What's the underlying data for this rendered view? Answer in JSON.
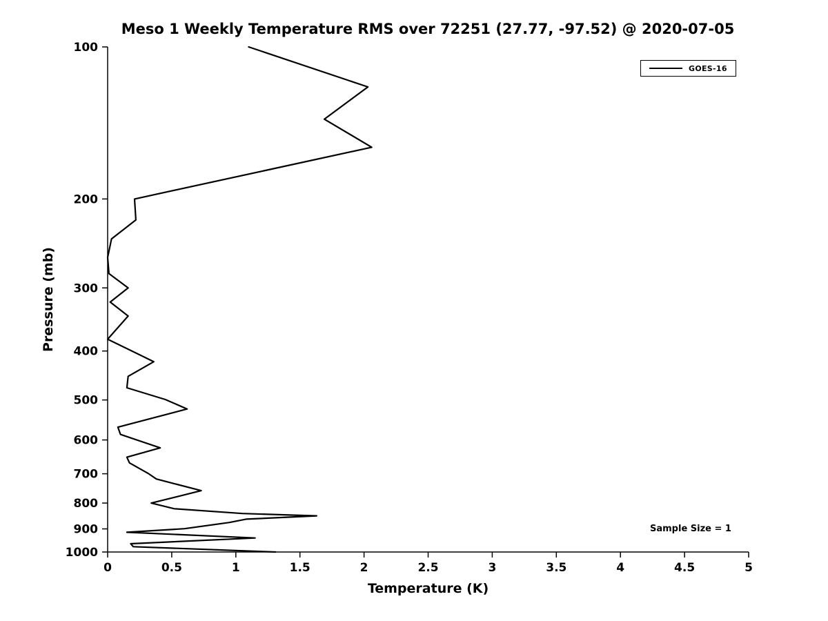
{
  "chart_data": {
    "type": "line",
    "title": "Meso 1 Weekly Temperature RMS over 72251 (27.77, -97.52) @ 2020-07-05",
    "xlabel": "Temperature (K)",
    "ylabel": "Pressure (mb)",
    "xlim": [
      0,
      5
    ],
    "ylim": [
      100,
      1000
    ],
    "y_scale": "log",
    "y_inverted": true,
    "grid": false,
    "x_ticks": [
      0,
      0.5,
      1,
      1.5,
      2,
      2.5,
      3,
      3.5,
      4,
      4.5,
      5
    ],
    "y_ticks": [
      100,
      200,
      300,
      400,
      500,
      600,
      700,
      800,
      900,
      1000
    ],
    "line_color": "#000000",
    "legend_position": "top-right",
    "legend": [
      {
        "label": "GOES-16",
        "color": "#000000"
      }
    ],
    "annotation": "Sample Size = 1",
    "series": [
      {
        "name": "GOES-16",
        "points": [
          [
            1.1,
            100
          ],
          [
            2.03,
            120
          ],
          [
            1.69,
            139
          ],
          [
            2.06,
            158
          ],
          [
            0.21,
            200
          ],
          [
            0.22,
            220
          ],
          [
            0.03,
            240
          ],
          [
            0.0,
            261
          ],
          [
            0.01,
            281
          ],
          [
            0.16,
            300
          ],
          [
            0.02,
            320
          ],
          [
            0.16,
            341
          ],
          [
            0.0,
            379
          ],
          [
            0.36,
            420
          ],
          [
            0.16,
            449
          ],
          [
            0.15,
            473
          ],
          [
            0.45,
            499
          ],
          [
            0.62,
            521
          ],
          [
            0.08,
            566
          ],
          [
            0.1,
            585
          ],
          [
            0.41,
            622
          ],
          [
            0.15,
            649
          ],
          [
            0.17,
            666
          ],
          [
            0.32,
            700
          ],
          [
            0.38,
            717
          ],
          [
            0.73,
            756
          ],
          [
            0.34,
            800
          ],
          [
            0.52,
            821
          ],
          [
            1.05,
            839
          ],
          [
            1.63,
            848
          ],
          [
            1.08,
            861
          ],
          [
            0.95,
            874
          ],
          [
            0.6,
            899
          ],
          [
            0.15,
            914
          ],
          [
            1.15,
            938
          ],
          [
            0.18,
            963
          ],
          [
            0.2,
            976
          ],
          [
            1.31,
            1000
          ]
        ]
      }
    ]
  }
}
